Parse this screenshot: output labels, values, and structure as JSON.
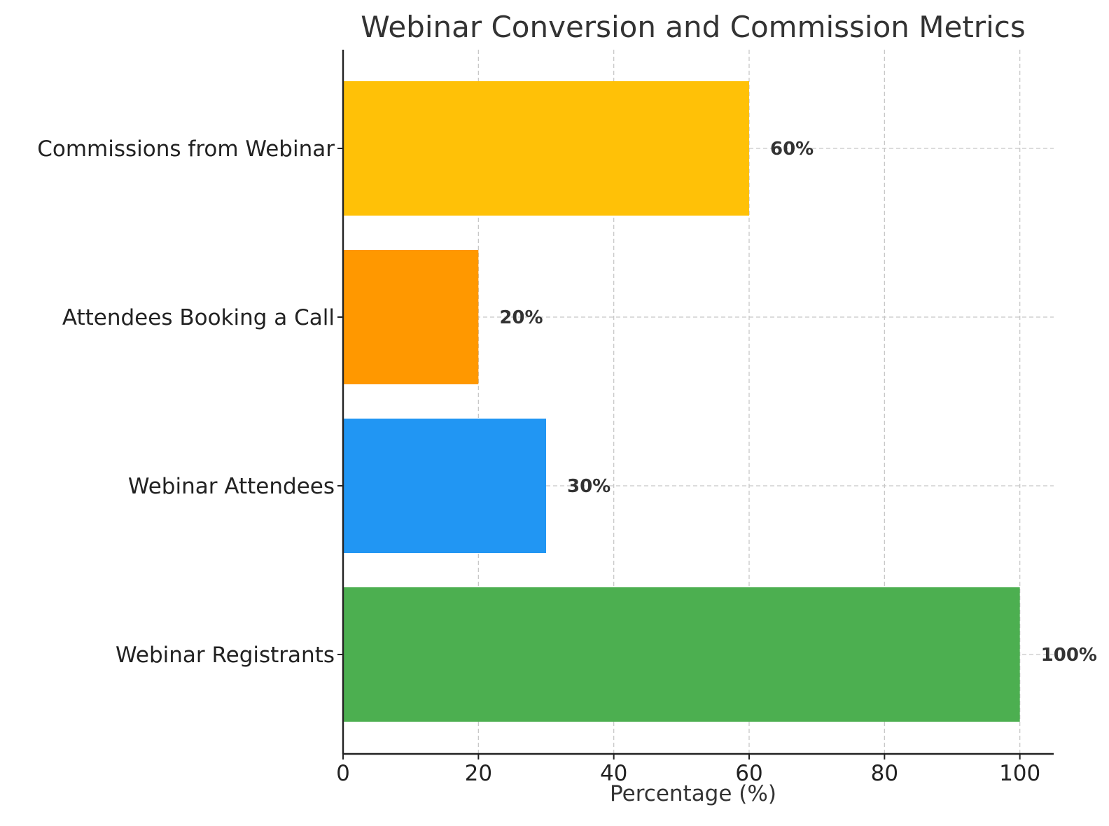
{
  "chart_data": {
    "type": "bar",
    "orientation": "horizontal",
    "title": "Webinar Conversion and Commission Metrics",
    "xlabel": "Percentage (%)",
    "ylabel": "",
    "categories": [
      "Webinar Registrants",
      "Webinar Attendees",
      "Attendees Booking a Call",
      "Commissions from Webinar"
    ],
    "values": [
      100,
      30,
      20,
      60
    ],
    "data_labels": [
      "100%",
      "30%",
      "20%",
      "60%"
    ],
    "colors": [
      "#4caf50",
      "#2196f3",
      "#ff9800",
      "#ffc107"
    ],
    "xlim": [
      0,
      105
    ],
    "xticks": [
      0,
      20,
      40,
      60,
      80,
      100
    ],
    "grid": true
  }
}
